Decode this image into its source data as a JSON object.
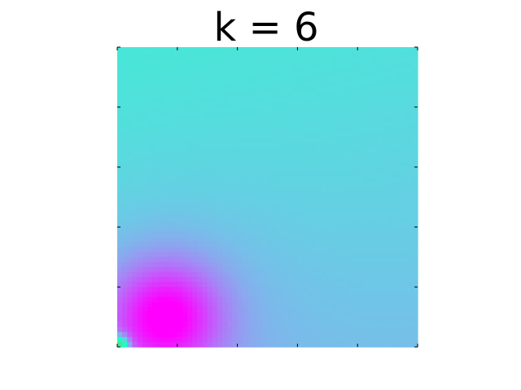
{
  "chart_data": {
    "type": "heatmap",
    "title": "k = 6",
    "xlabel": "",
    "ylabel": "",
    "colormap": "rainbow",
    "grid": false,
    "ticks": {
      "x_count": 6,
      "y_count": 6,
      "labels_shown": false
    },
    "colors": {
      "top": "#12c6e4",
      "middle": "#02b0ec",
      "lower_right": "#1996e8",
      "low_min": "#7f00ff",
      "corner_bright": "#80ffb4"
    }
  }
}
